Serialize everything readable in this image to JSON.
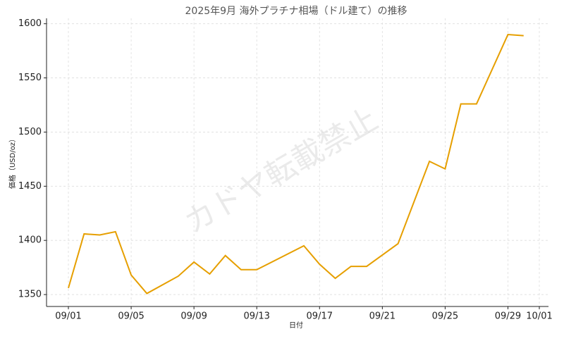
{
  "chart_data": {
    "type": "line",
    "title": "2025年9月 海外プラチナ相場（ドル建て）の推移",
    "x_label": "日付",
    "y_label": "価格（USD/oz）",
    "watermark": "カドヤ転載禁止",
    "x": [
      "09/01",
      "09/02",
      "09/03",
      "09/04",
      "09/05",
      "09/06",
      "09/08",
      "09/09",
      "09/10",
      "09/11",
      "09/12",
      "09/13",
      "09/16",
      "09/17",
      "09/18",
      "09/19",
      "09/20",
      "09/22",
      "09/24",
      "09/25",
      "09/26",
      "09/27",
      "09/29",
      "09/30"
    ],
    "series": [
      {
        "name": "価格",
        "color": "#e69f00",
        "values": [
          1356,
          1406,
          1405,
          1408,
          1368,
          1351,
          1367,
          1380,
          1369,
          1386,
          1373,
          1373,
          1395,
          1378,
          1365,
          1376,
          1376,
          1397,
          1473,
          1466,
          1526,
          1526,
          1590,
          1589
        ]
      }
    ],
    "xticks": [
      "09/01",
      "09/05",
      "09/09",
      "09/13",
      "09/17",
      "09/21",
      "09/25",
      "09/29",
      "10/01"
    ],
    "ylim": [
      1339,
      1605
    ],
    "yticks": [
      1350,
      1400,
      1450,
      1500,
      1550,
      1600
    ],
    "grid": true
  }
}
